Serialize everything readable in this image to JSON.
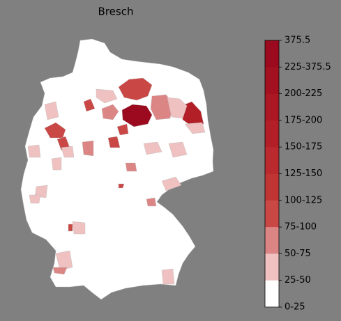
{
  "title": "Bresch",
  "colorbar": {
    "labels": [
      "375.5",
      "225-375.5",
      "200-225",
      "175-200",
      "150-175",
      "125-150",
      "100-125",
      "75-100",
      "50-75",
      "25-50",
      "0-25"
    ],
    "colors": [
      "#9b0a1e",
      "#a3101f",
      "#ab1722",
      "#b31f27",
      "#ba292d",
      "#c03434",
      "#c94744",
      "#dc8585",
      "#efc1c1",
      "#ffffff"
    ]
  }
}
